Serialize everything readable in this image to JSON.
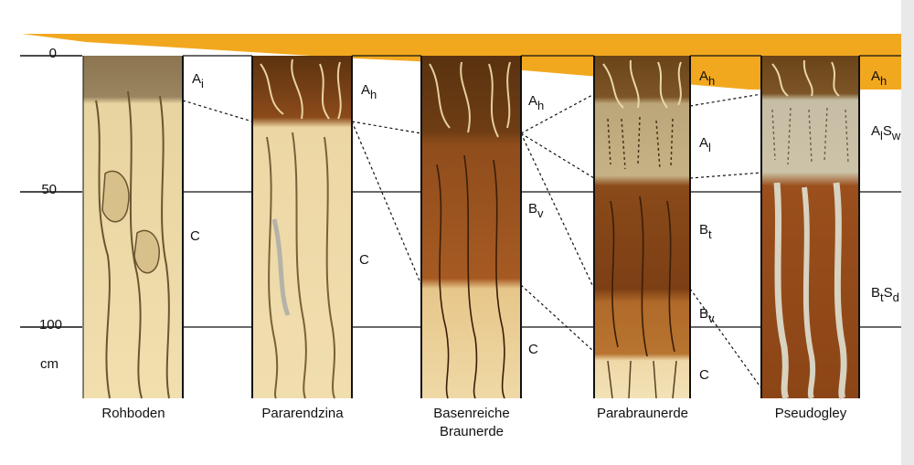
{
  "axis": {
    "ticks": [
      "0",
      "50",
      "100"
    ],
    "unit": "cm"
  },
  "profiles": [
    {
      "name": "Rohboden",
      "horizons": [
        {
          "base": "A",
          "sub": "i"
        },
        {
          "base": "C",
          "sub": ""
        }
      ]
    },
    {
      "name": "Pararendzina",
      "horizons": [
        {
          "base": "A",
          "sub": "h"
        },
        {
          "base": "C",
          "sub": ""
        }
      ]
    },
    {
      "name": "Basenreiche Braunerde",
      "name_lines": [
        "Basenreiche",
        "Braunerde"
      ],
      "horizons": [
        {
          "base": "A",
          "sub": "h"
        },
        {
          "base": "B",
          "sub": "v"
        },
        {
          "base": "C",
          "sub": ""
        }
      ]
    },
    {
      "name": "Parabraunerde",
      "horizons": [
        {
          "base": "A",
          "sub": "h"
        },
        {
          "base": "A",
          "sub": "l"
        },
        {
          "base": "B",
          "sub": "t"
        },
        {
          "base": "B",
          "sub": "v"
        },
        {
          "base": "C",
          "sub": ""
        }
      ]
    },
    {
      "name": "Pseudogley",
      "horizons": [
        {
          "base": "A",
          "sub": "h"
        },
        {
          "base": "A",
          "sub": "l",
          "base2": "S",
          "sub2": "w"
        },
        {
          "base": "B",
          "sub": "t",
          "base2": "S",
          "sub2": "d"
        }
      ]
    }
  ],
  "colors": {
    "topsoil_wedge": "#f2a81e",
    "parent_material": "#e8cf96",
    "humus": "#6b3b14",
    "brown_subsoil": "#9a4f1c",
    "grey_mottle": "#cfc6ae",
    "line": "#111111"
  }
}
